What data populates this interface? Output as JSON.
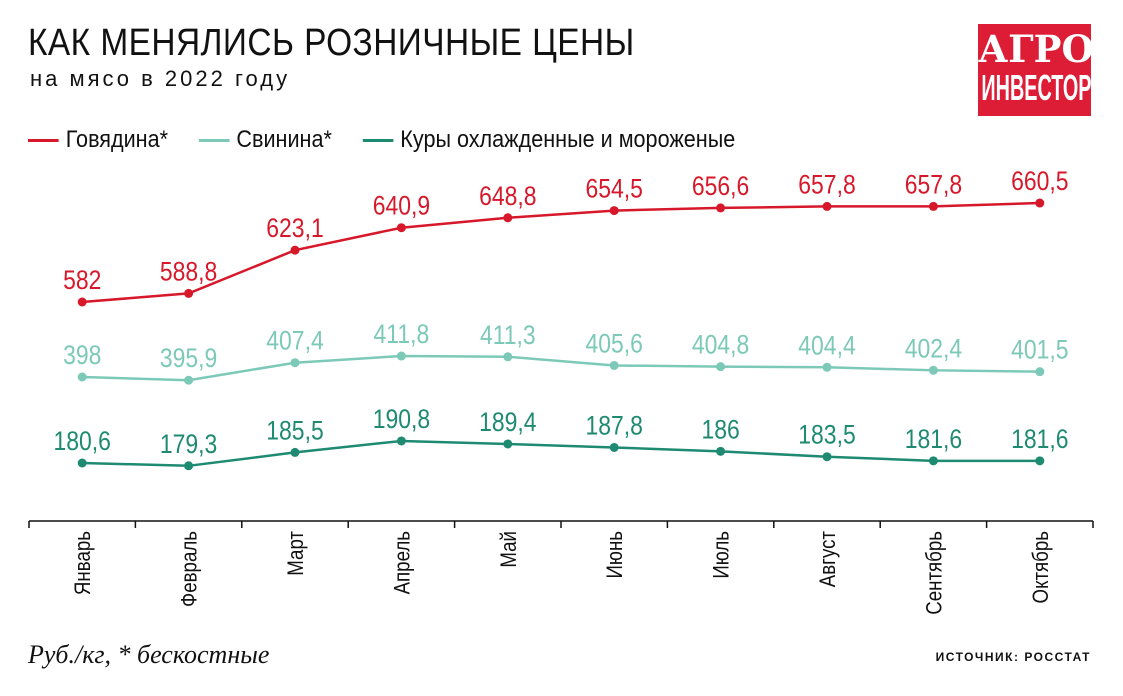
{
  "title": "КАК МЕНЯЛИСЬ РОЗНИЧНЫЕ ЦЕНЫ",
  "subtitle": "на мясо в 2022 году",
  "logo": {
    "line1": "АГРО",
    "line2": "ИНВЕСТОР",
    "color": "#dd1c35"
  },
  "footnote": "Руб./кг, * бескостные",
  "source": "ИСТОЧНИК: РОССТАТ",
  "chart_data": {
    "type": "line",
    "categories": [
      "Январь",
      "Февраль",
      "Март",
      "Апрель",
      "Май",
      "Июнь",
      "Июль",
      "Август",
      "Сентябрь",
      "Октябрь"
    ],
    "ylabel": "Руб./кг",
    "legend_position": "top-left",
    "grid": false,
    "series": [
      {
        "name": "Говядина*",
        "color": "#d7182a",
        "values": [
          582,
          588.8,
          623.1,
          640.9,
          648.8,
          654.5,
          656.6,
          657.8,
          657.8,
          660.5
        ],
        "labels": [
          "582",
          "588,8",
          "623,1",
          "640,9",
          "648,8",
          "654,5",
          "656,6",
          "657,8",
          "657,8",
          "660,5"
        ]
      },
      {
        "name": "Свинина*",
        "color": "#7cc9b8",
        "values": [
          398,
          395.9,
          407.4,
          411.8,
          411.3,
          405.6,
          404.8,
          404.4,
          402.4,
          401.5
        ],
        "labels": [
          "398",
          "395,9",
          "407,4",
          "411,8",
          "411,3",
          "405,6",
          "404,8",
          "404,4",
          "402,4",
          "401,5"
        ]
      },
      {
        "name": "Куры охлажденные и мороженые",
        "color": "#1e8a72",
        "values": [
          180.6,
          179.3,
          185.5,
          190.8,
          189.4,
          187.8,
          186,
          183.5,
          181.6,
          181.6
        ],
        "labels": [
          "180,6",
          "179,3",
          "185,5",
          "190,8",
          "189,4",
          "187,8",
          "186",
          "183,5",
          "181,6",
          "181,6"
        ]
      }
    ]
  }
}
